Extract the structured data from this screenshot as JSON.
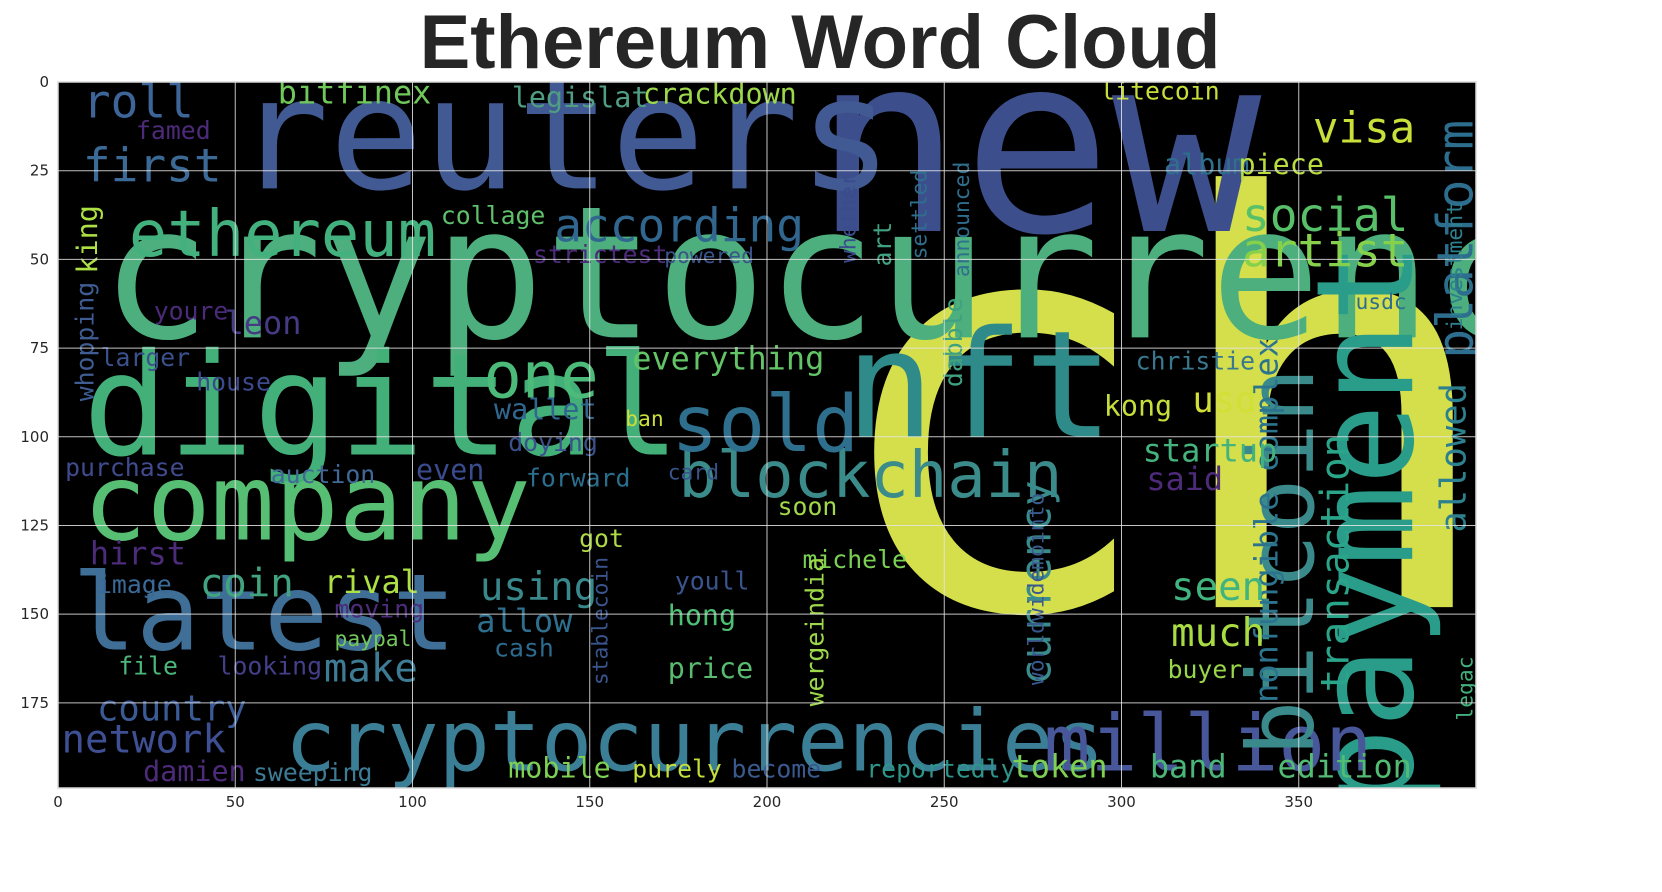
{
  "chart_data": {
    "type": "image",
    "title": "Ethereum Word Cloud",
    "background": "#000000",
    "grid": true,
    "xlim": [
      0,
      400
    ],
    "ylim": [
      199,
      0
    ],
    "x_ticks": [
      0,
      50,
      100,
      150,
      200,
      250,
      300,
      350
    ],
    "y_ticks": [
      0,
      25,
      50,
      75,
      100,
      125,
      150,
      175
    ],
    "words": [
      {
        "text": "char",
        "x": 215,
        "y": 148,
        "size": 160,
        "color": "#d4df4b"
      },
      {
        "text": "cryptocurrency",
        "x": 12,
        "y": 72,
        "size": 52,
        "color": "#4caf7d"
      },
      {
        "text": "new",
        "x": 213,
        "y": 42,
        "size": 70,
        "color": "#3d4e8c"
      },
      {
        "text": "reuters",
        "x": 50,
        "y": 30,
        "size": 44,
        "color": "#415a94"
      },
      {
        "text": "nft",
        "x": 222,
        "y": 100,
        "size": 42,
        "color": "#2f8b8a"
      },
      {
        "text": "digital",
        "x": 7,
        "y": 105,
        "size": 40,
        "color": "#43b07a"
      },
      {
        "text": "payment",
        "x": 382,
        "y": 205,
        "size": 38,
        "color": "#2a9c8a",
        "rotate": true
      },
      {
        "text": "company",
        "x": 7,
        "y": 129,
        "size": 30,
        "color": "#57bf73"
      },
      {
        "text": "latest",
        "x": 4,
        "y": 160,
        "size": 30,
        "color": "#3f6f96"
      },
      {
        "text": "cryptocurrencies",
        "x": 64,
        "y": 194,
        "size": 24,
        "color": "#3b7f97"
      },
      {
        "text": "million",
        "x": 278,
        "y": 194,
        "size": 22,
        "color": "#48569a"
      },
      {
        "text": "bitcoin",
        "x": 354,
        "y": 190,
        "size": 26,
        "color": "#3a8a8c",
        "rotate": true
      },
      {
        "text": "blockchain",
        "x": 175,
        "y": 117,
        "size": 18,
        "color": "#3a8b8a"
      },
      {
        "text": "sold",
        "x": 173,
        "y": 104,
        "size": 22,
        "color": "#2e6f8e"
      },
      {
        "text": "one",
        "x": 120,
        "y": 89,
        "size": 18,
        "color": "#4cba78"
      },
      {
        "text": "ethereum",
        "x": 20,
        "y": 49,
        "size": 18,
        "color": "#42b17d"
      },
      {
        "text": "according",
        "x": 140,
        "y": 45,
        "size": 13,
        "color": "#31678f"
      },
      {
        "text": "social",
        "x": 334,
        "y": 42,
        "size": 13,
        "color": "#58c068"
      },
      {
        "text": "artist",
        "x": 334,
        "y": 52,
        "size": 13,
        "color": "#86d14c"
      },
      {
        "text": "visa",
        "x": 354,
        "y": 17,
        "size": 12,
        "color": "#c9df3a"
      },
      {
        "text": "first",
        "x": 7,
        "y": 28,
        "size": 13,
        "color": "#3c6a96"
      },
      {
        "text": "roll",
        "x": 7,
        "y": 10,
        "size": 13,
        "color": "#3d6597"
      },
      {
        "text": "bitfinex",
        "x": 62,
        "y": 6,
        "size": 9,
        "color": "#70c85b"
      },
      {
        "text": "legislat",
        "x": 128,
        "y": 7,
        "size": 8,
        "color": "#4f9e84"
      },
      {
        "text": "crackdown",
        "x": 165,
        "y": 6,
        "size": 8,
        "color": "#9dd84a"
      },
      {
        "text": "litecoin",
        "x": 294,
        "y": 5,
        "size": 7,
        "color": "#c8df3b"
      },
      {
        "text": "platform",
        "x": 399,
        "y": 78,
        "size": 14,
        "color": "#2d6e8e",
        "rotate": true
      },
      {
        "text": "album",
        "x": 312,
        "y": 26,
        "size": 8,
        "color": "#2f6f8e"
      },
      {
        "text": "piece",
        "x": 333,
        "y": 26,
        "size": 8,
        "color": "#b9dc3e"
      },
      {
        "text": "allowed",
        "x": 397,
        "y": 127,
        "size": 10,
        "color": "#2d808e",
        "rotate": true
      },
      {
        "text": "transaction",
        "x": 364,
        "y": 172,
        "size": 11,
        "color": "#2aa58a",
        "rotate": true
      },
      {
        "text": "nonfungible complex",
        "x": 344,
        "y": 175,
        "size": 9,
        "color": "#2c748e",
        "rotate": true
      },
      {
        "text": "currency",
        "x": 280,
        "y": 170,
        "size": 12,
        "color": "#3a8b8c",
        "rotate": true
      },
      {
        "text": "much",
        "x": 314,
        "y": 159,
        "size": 11,
        "color": "#a9db42"
      },
      {
        "text": "seen",
        "x": 314,
        "y": 146,
        "size": 11,
        "color": "#41b37f"
      },
      {
        "text": "startup",
        "x": 306,
        "y": 107,
        "size": 9,
        "color": "#44b37d"
      },
      {
        "text": "said",
        "x": 307,
        "y": 115,
        "size": 9,
        "color": "#4e2a7a"
      },
      {
        "text": "usd",
        "x": 320,
        "y": 93,
        "size": 10,
        "color": "#d1e036"
      },
      {
        "text": "kong",
        "x": 295,
        "y": 94,
        "size": 8,
        "color": "#c8de3a"
      },
      {
        "text": "christie",
        "x": 304,
        "y": 81,
        "size": 7,
        "color": "#39798f"
      },
      {
        "text": "everything",
        "x": 162,
        "y": 81,
        "size": 9,
        "color": "#62c466"
      },
      {
        "text": "wallet",
        "x": 123,
        "y": 95,
        "size": 8,
        "color": "#31668f"
      },
      {
        "text": "leon",
        "x": 47,
        "y": 71,
        "size": 9,
        "color": "#453a83"
      },
      {
        "text": "larger",
        "x": 12,
        "y": 80,
        "size": 7,
        "color": "#3b518b"
      },
      {
        "text": "house",
        "x": 39,
        "y": 87,
        "size": 7,
        "color": "#3c4a8d"
      },
      {
        "text": "auction",
        "x": 60,
        "y": 113,
        "size": 7,
        "color": "#416997"
      },
      {
        "text": "purchase",
        "x": 2,
        "y": 111,
        "size": 7,
        "color": "#3f4b8e"
      },
      {
        "text": "even",
        "x": 101,
        "y": 112,
        "size": 8,
        "color": "#3a4b8e"
      },
      {
        "text": "forward",
        "x": 132,
        "y": 114,
        "size": 7,
        "color": "#2b6f8e"
      },
      {
        "text": "doying",
        "x": 127,
        "y": 104,
        "size": 7,
        "color": "#3b518b"
      },
      {
        "text": "card",
        "x": 172,
        "y": 112,
        "size": 6,
        "color": "#39548b"
      },
      {
        "text": "soon",
        "x": 203,
        "y": 122,
        "size": 7,
        "color": "#a2d84a"
      },
      {
        "text": "hirst",
        "x": 9,
        "y": 136,
        "size": 9,
        "color": "#4c2c7a"
      },
      {
        "text": "image",
        "x": 11,
        "y": 144,
        "size": 7,
        "color": "#3a6a97"
      },
      {
        "text": "coin",
        "x": 40,
        "y": 145,
        "size": 11,
        "color": "#41a380"
      },
      {
        "text": "rival",
        "x": 75,
        "y": 144,
        "size": 9,
        "color": "#ace044"
      },
      {
        "text": "using",
        "x": 119,
        "y": 146,
        "size": 11,
        "color": "#39898c"
      },
      {
        "text": "got",
        "x": 147,
        "y": 131,
        "size": 7,
        "color": "#b0d947"
      },
      {
        "text": "allow",
        "x": 118,
        "y": 155,
        "size": 9,
        "color": "#2e6f8e"
      },
      {
        "text": "hong",
        "x": 172,
        "y": 153,
        "size": 8,
        "color": "#4fc073"
      },
      {
        "text": "youll",
        "x": 174,
        "y": 143,
        "size": 7,
        "color": "#3a548e"
      },
      {
        "text": "michele",
        "x": 210,
        "y": 137,
        "size": 7,
        "color": "#7ad052"
      },
      {
        "text": "moving",
        "x": 78,
        "y": 151,
        "size": 7,
        "color": "#4c2c7a"
      },
      {
        "text": "paypal",
        "x": 78,
        "y": 159,
        "size": 6,
        "color": "#73c85a"
      },
      {
        "text": "cash",
        "x": 123,
        "y": 162,
        "size": 7,
        "color": "#2c6b8e"
      },
      {
        "text": "price",
        "x": 172,
        "y": 168,
        "size": 8,
        "color": "#58bb6f"
      },
      {
        "text": "make",
        "x": 75,
        "y": 169,
        "size": 11,
        "color": "#3d7c94"
      },
      {
        "text": "file",
        "x": 17,
        "y": 167,
        "size": 7,
        "color": "#4cb57a"
      },
      {
        "text": "looking",
        "x": 45,
        "y": 167,
        "size": 7,
        "color": "#433f88"
      },
      {
        "text": "country",
        "x": 11,
        "y": 180,
        "size": 10,
        "color": "#3b5b96"
      },
      {
        "text": "network",
        "x": 1,
        "y": 189,
        "size": 11,
        "color": "#3e4f93"
      },
      {
        "text": "damien",
        "x": 24,
        "y": 197,
        "size": 8,
        "color": "#4e2a7a"
      },
      {
        "text": "sweeping",
        "x": 55,
        "y": 197,
        "size": 7,
        "color": "#3e7c96"
      },
      {
        "text": "mobile",
        "x": 127,
        "y": 196,
        "size": 8,
        "color": "#7ed053"
      },
      {
        "text": "purely",
        "x": 162,
        "y": 196,
        "size": 7,
        "color": "#c4de3a"
      },
      {
        "text": "become",
        "x": 190,
        "y": 196,
        "size": 7,
        "color": "#3a5a8f"
      },
      {
        "text": "reportedly",
        "x": 228,
        "y": 196,
        "size": 7,
        "color": "#2e958b"
      },
      {
        "text": "token",
        "x": 269,
        "y": 196,
        "size": 9,
        "color": "#7ed053"
      },
      {
        "text": "band",
        "x": 308,
        "y": 196,
        "size": 9,
        "color": "#4ab67a"
      },
      {
        "text": "edition",
        "x": 344,
        "y": 196,
        "size": 9,
        "color": "#52bb74"
      },
      {
        "text": "buyer",
        "x": 313,
        "y": 168,
        "size": 7,
        "color": "#99d548"
      },
      {
        "text": "king",
        "x": 11,
        "y": 54,
        "size": 8,
        "color": "#ace044",
        "rotate": true
      },
      {
        "text": "whopping",
        "x": 10,
        "y": 90,
        "size": 7,
        "color": "#3f5d93",
        "rotate": true
      },
      {
        "text": "youre",
        "x": 27,
        "y": 67,
        "size": 7,
        "color": "#4c2a7a"
      },
      {
        "text": "famed",
        "x": 22,
        "y": 16,
        "size": 7,
        "color": "#4e2a7a"
      },
      {
        "text": "collage",
        "x": 108,
        "y": 40,
        "size": 7,
        "color": "#5fc06b"
      },
      {
        "text": "strictest",
        "x": 134,
        "y": 51,
        "size": 7,
        "color": "#4c2c7a"
      },
      {
        "text": "powered",
        "x": 171,
        "y": 51,
        "size": 6,
        "color": "#3a548b"
      },
      {
        "text": "ban",
        "x": 160,
        "y": 97,
        "size": 6,
        "color": "#cddf38"
      },
      {
        "text": "art",
        "x": 235,
        "y": 52,
        "size": 7,
        "color": "#3fa17f",
        "rotate": true
      },
      {
        "text": "settled",
        "x": 245,
        "y": 50,
        "size": 6,
        "color": "#2e6f8e",
        "rotate": true
      },
      {
        "text": "announced",
        "x": 257,
        "y": 55,
        "size": 6,
        "color": "#2e6f8e",
        "rotate": true
      },
      {
        "text": "whether",
        "x": 225,
        "y": 51,
        "size": 6,
        "color": "#3a4b8e",
        "rotate": true
      },
      {
        "text": "dabble",
        "x": 255,
        "y": 86,
        "size": 7,
        "color": "#3fa17f",
        "rotate": true
      },
      {
        "text": "wergeindia",
        "x": 216,
        "y": 176,
        "size": 7,
        "color": "#9dd84a",
        "rotate": true
      },
      {
        "text": "stablecoin",
        "x": 155,
        "y": 170,
        "size": 6,
        "color": "#3a548e",
        "rotate": true
      },
      {
        "text": "worldwidemointo",
        "x": 278,
        "y": 170,
        "size": 6,
        "color": "#3a5a8f",
        "rotate": true
      },
      {
        "text": "investment",
        "x": 396,
        "y": 70,
        "size": 6,
        "color": "#2d808e",
        "rotate": true
      },
      {
        "text": "legac",
        "x": 399,
        "y": 180,
        "size": 6,
        "color": "#41b07c",
        "rotate": true
      },
      {
        "text": "usdc",
        "x": 366,
        "y": 64,
        "size": 6,
        "color": "#2d6e8e"
      }
    ]
  }
}
